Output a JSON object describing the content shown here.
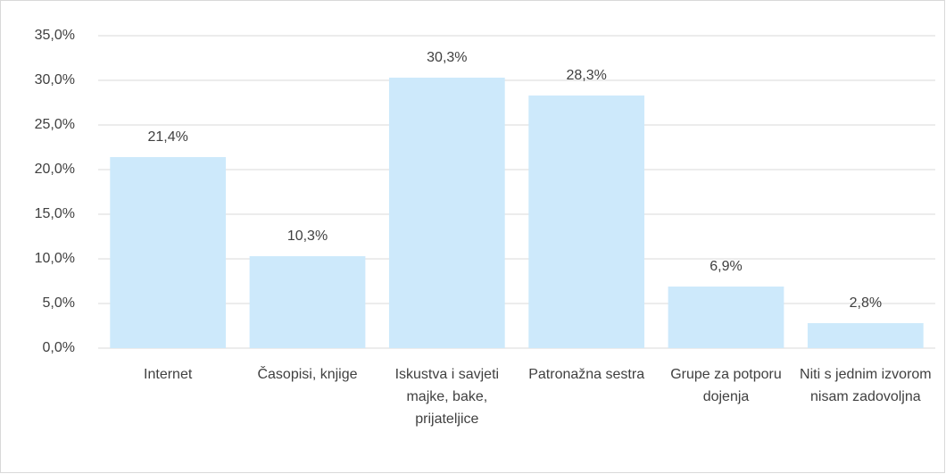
{
  "chart_data": {
    "type": "bar",
    "categories": [
      "Internet",
      "Časopisi, knjige",
      "Iskustva i savjeti majke, bake, prijateljice",
      "Patronažna sestra",
      "Grupe za potporu dojenja",
      "Niti s jednim izvorom nisam zadovoljna"
    ],
    "values": [
      21.4,
      10.3,
      30.3,
      28.3,
      6.9,
      2.8
    ],
    "value_labels": [
      "21,4%",
      "10,3%",
      "30,3%",
      "28,3%",
      "6,9%",
      "2,8%"
    ],
    "color": "#cde9fb",
    "ylim": [
      0,
      35
    ],
    "yticks": [
      {
        "value": 0,
        "label": "0,0%"
      },
      {
        "value": 5,
        "label": "5,0%"
      },
      {
        "value": 10,
        "label": "10,0%"
      },
      {
        "value": 15,
        "label": "15,0%"
      },
      {
        "value": 20,
        "label": "20,0%"
      },
      {
        "value": 25,
        "label": "25,0%"
      },
      {
        "value": 30,
        "label": "30,0%"
      },
      {
        "value": 35,
        "label": "35,0%"
      }
    ],
    "grid": true
  }
}
